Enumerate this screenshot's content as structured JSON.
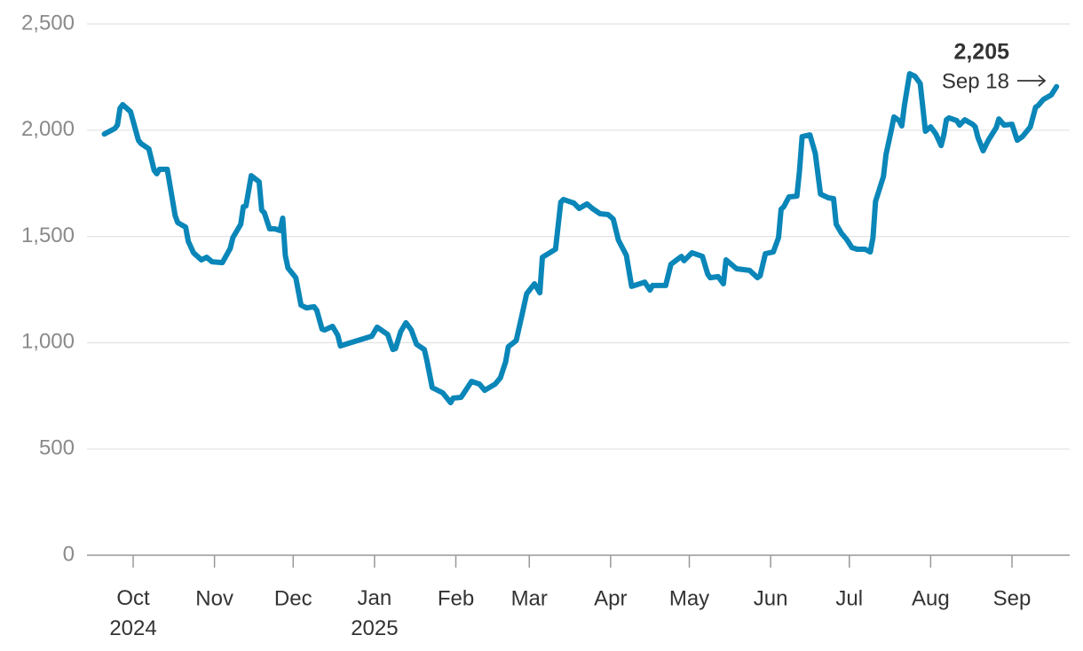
{
  "chart_data": {
    "type": "line",
    "color": "#0a86b8",
    "x": [
      -11,
      -7,
      -6,
      -5,
      -4,
      -1,
      2,
      3,
      6,
      8,
      9,
      10,
      13,
      16,
      17,
      20,
      21,
      23,
      26,
      28,
      30,
      34,
      37,
      38,
      41,
      42,
      43,
      45,
      48,
      49,
      50,
      52,
      54,
      56,
      57,
      58,
      59,
      62,
      64,
      66,
      69,
      70,
      72,
      73,
      76,
      78,
      79,
      81,
      91,
      93,
      97,
      99,
      100,
      102,
      104,
      106,
      108,
      111,
      112,
      114,
      118,
      121,
      122,
      125,
      129,
      132,
      134,
      138,
      140,
      142,
      143,
      146,
      148,
      150,
      153,
      155,
      156,
      161,
      163,
      164,
      168,
      170,
      173,
      175,
      178,
      181,
      183,
      185,
      188,
      190,
      194,
      195,
      197,
      198,
      203,
      205,
      209,
      210,
      213,
      217,
      219,
      220,
      223,
      225,
      226,
      230,
      235,
      238,
      239,
      241,
      244,
      246,
      247,
      248,
      250,
      253,
      254,
      255,
      258,
      260,
      262,
      265,
      267,
      268,
      270,
      272,
      274,
      276,
      279,
      281,
      282,
      283,
      286,
      287,
      289,
      290,
      292,
      293,
      294,
      296,
      298,
      300,
      302,
      304,
      306,
      308,
      309,
      310,
      311,
      314,
      315,
      317,
      320,
      321,
      322,
      324,
      326,
      329,
      330,
      332,
      335,
      337,
      339,
      342,
      344,
      345,
      347,
      350,
      352
    ],
    "values": [
      1982,
      2008,
      2024,
      2103,
      2120,
      2087,
      1953,
      1937,
      1912,
      1811,
      1795,
      1816,
      1816,
      1598,
      1565,
      1544,
      1477,
      1423,
      1390,
      1402,
      1381,
      1377,
      1444,
      1494,
      1557,
      1640,
      1644,
      1786,
      1757,
      1624,
      1611,
      1536,
      1536,
      1528,
      1586,
      1411,
      1352,
      1306,
      1177,
      1164,
      1169,
      1152,
      1064,
      1060,
      1077,
      1035,
      985,
      993,
      1031,
      1073,
      1039,
      968,
      972,
      1052,
      1094,
      1060,
      993,
      968,
      914,
      789,
      764,
      718,
      739,
      743,
      818,
      805,
      776,
      805,
      835,
      910,
      981,
      1010,
      1119,
      1231,
      1277,
      1235,
      1402,
      1440,
      1661,
      1674,
      1657,
      1632,
      1653,
      1632,
      1607,
      1603,
      1582,
      1482,
      1411,
      1265,
      1281,
      1285,
      1248,
      1269,
      1269,
      1369,
      1406,
      1386,
      1423,
      1406,
      1323,
      1306,
      1311,
      1277,
      1390,
      1348,
      1340,
      1306,
      1315,
      1419,
      1427,
      1494,
      1628,
      1640,
      1686,
      1690,
      1807,
      1970,
      1978,
      1891,
      1699,
      1682,
      1678,
      1557,
      1515,
      1486,
      1448,
      1440,
      1440,
      1427,
      1494,
      1665,
      1782,
      1886,
      1999,
      2062,
      2045,
      2020,
      2116,
      2266,
      2254,
      2220,
      1995,
      2016,
      1982,
      1928,
      1978,
      2049,
      2058,
      2045,
      2024,
      2049,
      2028,
      2016,
      1966,
      1903,
      1953,
      2012,
      2053,
      2024,
      2028,
      1953,
      1970,
      2016,
      2108,
      2116,
      2145,
      2166,
      2205
    ],
    "xlim": [
      -17.6,
      357
    ],
    "xticks": [
      {
        "value": 0,
        "label": "Oct\n2024"
      },
      {
        "value": 31,
        "label": "Nov"
      },
      {
        "value": 61,
        "label": "Dec"
      },
      {
        "value": 92,
        "label": "Jan\n2025"
      },
      {
        "value": 123,
        "label": "Feb"
      },
      {
        "value": 151,
        "label": "Mar"
      },
      {
        "value": 182,
        "label": "Apr"
      },
      {
        "value": 212,
        "label": "May"
      },
      {
        "value": 243,
        "label": "Jun"
      },
      {
        "value": 273,
        "label": "Jul"
      },
      {
        "value": 304,
        "label": "Aug"
      },
      {
        "value": 335,
        "label": "Sep"
      }
    ],
    "ylim": [
      0,
      2500
    ],
    "yticks": [
      0,
      500,
      {
        "value": 1000,
        "label": "1,000"
      },
      {
        "value": 1500,
        "label": "1,500"
      },
      {
        "value": 2000,
        "label": "2,000"
      },
      {
        "value": 2500,
        "label": "2,500"
      }
    ],
    "grid": true,
    "annotation": {
      "value_label": "2,205",
      "date_label": "Sep 18"
    }
  }
}
